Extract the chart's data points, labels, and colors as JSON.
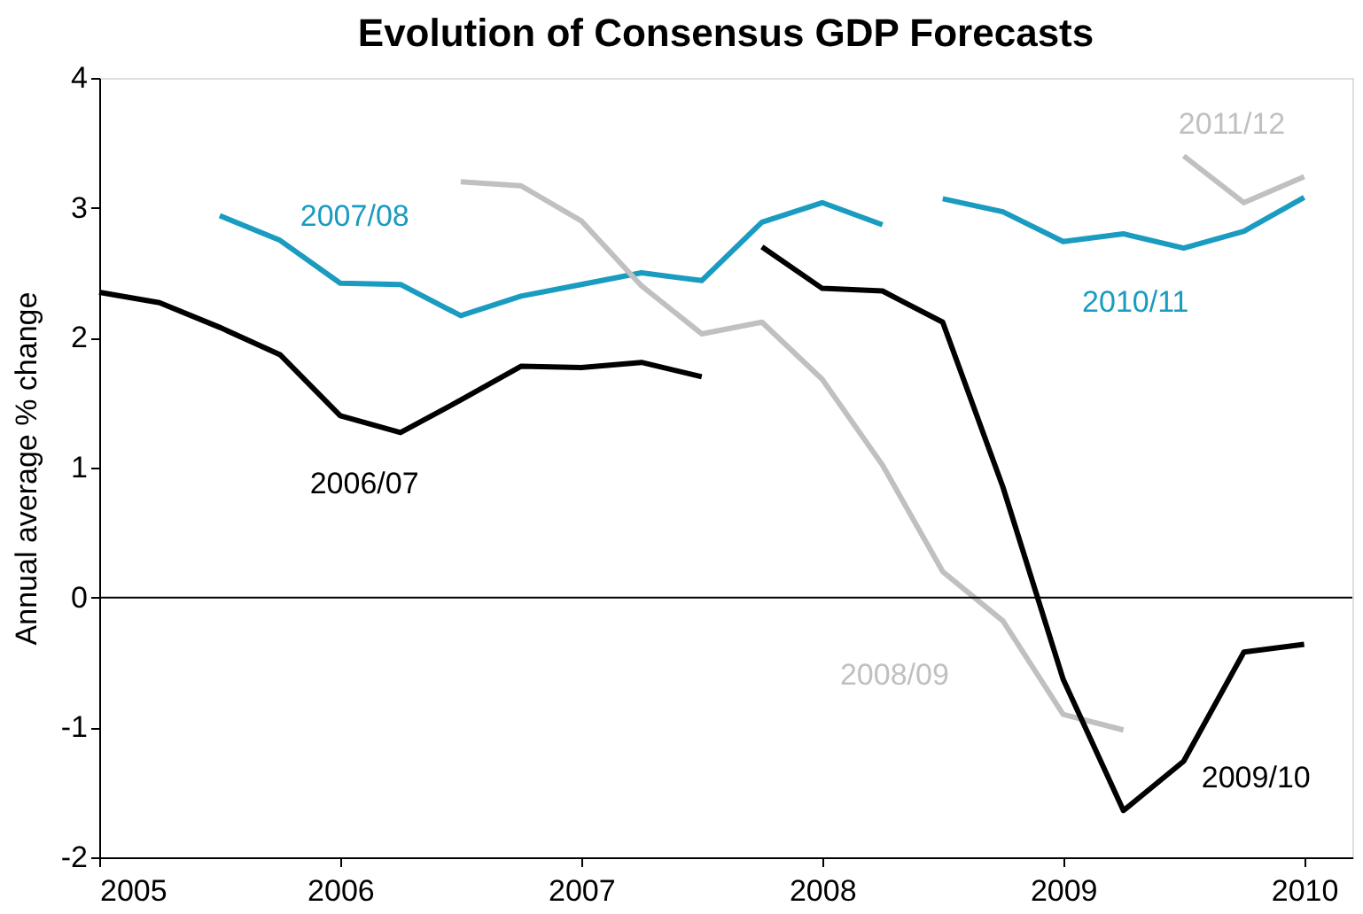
{
  "chart_data": {
    "type": "line",
    "title": "Evolution of Consensus GDP Forecasts",
    "ylabel": "Annual average % change",
    "xlim": [
      2005,
      2010.2
    ],
    "xticks": [
      2005,
      2006,
      2007,
      2008,
      2009,
      2010
    ],
    "ylim": [
      -2,
      4
    ],
    "yticks": [
      -2,
      -1,
      0,
      1,
      2,
      3,
      4
    ],
    "grid": false,
    "legend": false,
    "marker": "none",
    "line_style": "solid",
    "ref_lines": [
      {
        "axis": "y",
        "value": 0,
        "color": "#000000"
      }
    ],
    "series": [
      {
        "name": "2006/07",
        "color": "#000000",
        "x": [
          2005,
          2005.25,
          2005.5,
          2005.75,
          2006,
          2006.25,
          2006.5,
          2006.75,
          2007,
          2007.25,
          2007.5
        ],
        "values": [
          2.35,
          2.27,
          2.08,
          1.87,
          1.4,
          1.27,
          1.52,
          1.78,
          1.77,
          1.81,
          1.7
        ]
      },
      {
        "name": "2007/08",
        "color": "#1a9bc0",
        "x": [
          2005.5,
          2005.75,
          2006,
          2006.25,
          2006.5,
          2006.75,
          2007,
          2007.25,
          2007.5,
          2007.75,
          2008,
          2008.25
        ],
        "values": [
          2.94,
          2.75,
          2.42,
          2.41,
          2.17,
          2.32,
          2.41,
          2.5,
          2.44,
          2.89,
          3.04,
          2.87
        ]
      },
      {
        "name": "2008/09",
        "color": "#c0c0c0",
        "x": [
          2006.5,
          2006.75,
          2007,
          2007.25,
          2007.5,
          2007.75,
          2008,
          2008.25,
          2008.5,
          2008.75,
          2009,
          2009.25
        ],
        "values": [
          3.2,
          3.17,
          2.9,
          2.4,
          2.03,
          2.12,
          1.68,
          1.02,
          0.2,
          -0.18,
          -0.9,
          -1.02
        ]
      },
      {
        "name": "2009/10",
        "color": "#000000",
        "x": [
          2007.75,
          2008,
          2008.25,
          2008.5,
          2008.75,
          2009,
          2009.25,
          2009.5,
          2009.75,
          2010
        ],
        "values": [
          2.7,
          2.38,
          2.36,
          2.12,
          0.85,
          -0.63,
          -1.64,
          -1.26,
          -0.42,
          -0.36
        ]
      },
      {
        "name": "2010/11",
        "color": "#1a9bc0",
        "x": [
          2008.5,
          2008.75,
          2009,
          2009.25,
          2009.5,
          2009.75,
          2010
        ],
        "values": [
          3.07,
          2.97,
          2.74,
          2.8,
          2.69,
          2.82,
          3.08
        ]
      },
      {
        "name": "2011/12",
        "color": "#c0c0c0",
        "x": [
          2009.5,
          2009.75,
          2010
        ],
        "values": [
          3.4,
          3.04,
          3.24
        ]
      }
    ]
  }
}
